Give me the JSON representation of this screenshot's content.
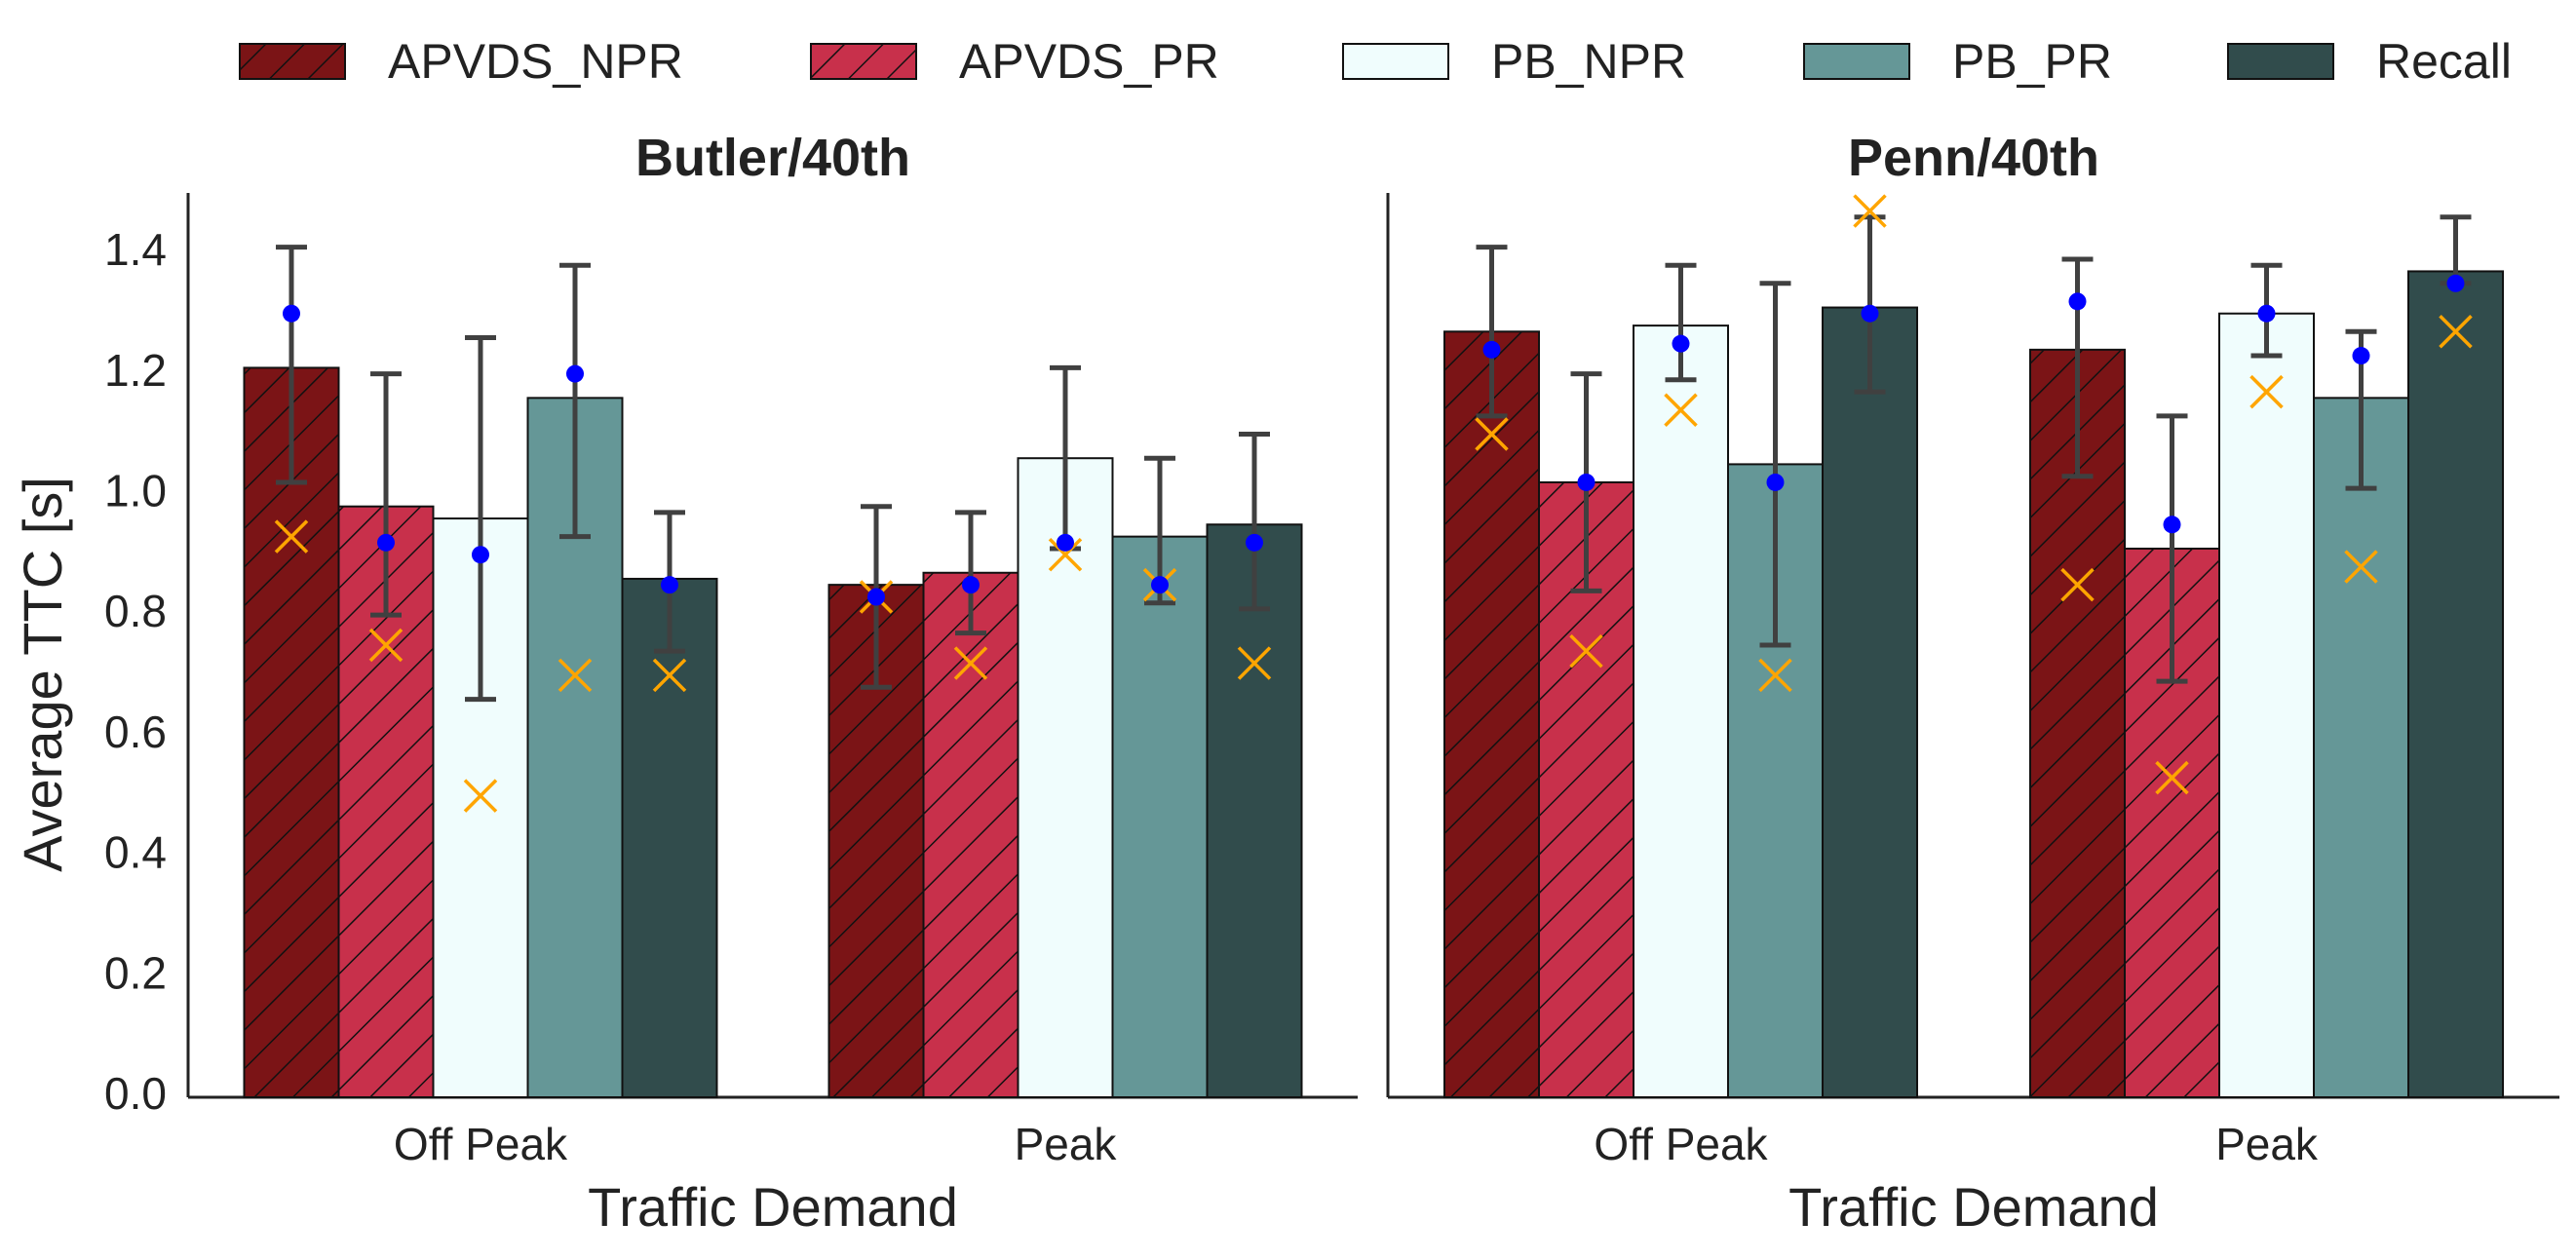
{
  "chart_data": {
    "type": "bar",
    "y_label": "Average TTC [s]",
    "x_label": "Traffic Demand",
    "ylim": [
      0,
      1.5
    ],
    "y_ticks": [
      "0.0",
      "0.2",
      "0.4",
      "0.6",
      "0.8",
      "1.0",
      "1.2",
      "1.4"
    ],
    "categories": [
      "Off Peak",
      "Peak"
    ],
    "legend_position": "top, above panels",
    "grid": false,
    "series": [
      {
        "name": "APVDS_NPR",
        "color": "#7b1416",
        "hatch": true
      },
      {
        "name": "APVDS_PR",
        "color": "#c8304b",
        "hatch": true
      },
      {
        "name": "PB_NPR",
        "color": "#f0fdfd",
        "hatch": false
      },
      {
        "name": "PB_PR",
        "color": "#659797",
        "hatch": false
      },
      {
        "name": "Recall",
        "color": "#314c4c",
        "hatch": false
      }
    ],
    "marker_colors": {
      "dot": "#0000ff",
      "cross": "#ffa500",
      "errorbar": "#404040"
    },
    "panels": [
      {
        "title": "Butler/40th",
        "groups": [
          {
            "category": "Off Peak",
            "bars": [
              {
                "series": "APVDS_NPR",
                "mean": 1.21,
                "err_low": 1.02,
                "err_high": 1.41,
                "dot": 1.3,
                "cross": 0.93
              },
              {
                "series": "APVDS_PR",
                "mean": 0.98,
                "err_low": 0.8,
                "err_high": 1.2,
                "dot": 0.92,
                "cross": 0.75
              },
              {
                "series": "PB_NPR",
                "mean": 0.96,
                "err_low": 0.66,
                "err_high": 1.26,
                "dot": 0.9,
                "cross": 0.5
              },
              {
                "series": "PB_PR",
                "mean": 1.16,
                "err_low": 0.93,
                "err_high": 1.38,
                "dot": 1.2,
                "cross": 0.7
              },
              {
                "series": "Recall",
                "mean": 0.86,
                "err_low": 0.74,
                "err_high": 0.97,
                "dot": 0.85,
                "cross": 0.7
              }
            ]
          },
          {
            "category": "Peak",
            "bars": [
              {
                "series": "APVDS_NPR",
                "mean": 0.85,
                "err_low": 0.68,
                "err_high": 0.98,
                "dot": 0.83,
                "cross": 0.83
              },
              {
                "series": "APVDS_PR",
                "mean": 0.87,
                "err_low": 0.77,
                "err_high": 0.97,
                "dot": 0.85,
                "cross": 0.72
              },
              {
                "series": "PB_NPR",
                "mean": 1.06,
                "err_low": 0.91,
                "err_high": 1.21,
                "dot": 0.92,
                "cross": 0.9
              },
              {
                "series": "PB_PR",
                "mean": 0.93,
                "err_low": 0.82,
                "err_high": 1.06,
                "dot": 0.85,
                "cross": 0.85
              },
              {
                "series": "Recall",
                "mean": 0.95,
                "err_low": 0.81,
                "err_high": 1.1,
                "dot": 0.92,
                "cross": 0.72
              }
            ]
          }
        ]
      },
      {
        "title": "Penn/40th",
        "groups": [
          {
            "category": "Off Peak",
            "bars": [
              {
                "series": "APVDS_NPR",
                "mean": 1.27,
                "err_low": 1.13,
                "err_high": 1.41,
                "dot": 1.24,
                "cross": 1.1
              },
              {
                "series": "APVDS_PR",
                "mean": 1.02,
                "err_low": 0.84,
                "err_high": 1.2,
                "dot": 1.02,
                "cross": 0.74
              },
              {
                "series": "PB_NPR",
                "mean": 1.28,
                "err_low": 1.19,
                "err_high": 1.38,
                "dot": 1.25,
                "cross": 1.14
              },
              {
                "series": "PB_PR",
                "mean": 1.05,
                "err_low": 0.75,
                "err_high": 1.35,
                "dot": 1.02,
                "cross": 0.7
              },
              {
                "series": "Recall",
                "mean": 1.31,
                "err_low": 1.17,
                "err_high": 1.46,
                "dot": 1.3,
                "cross": 1.47
              }
            ]
          },
          {
            "category": "Peak",
            "bars": [
              {
                "series": "APVDS_NPR",
                "mean": 1.24,
                "err_low": 1.03,
                "err_high": 1.39,
                "dot": 1.32,
                "cross": 0.85
              },
              {
                "series": "APVDS_PR",
                "mean": 0.91,
                "err_low": 0.69,
                "err_high": 1.13,
                "dot": 0.95,
                "cross": 0.53
              },
              {
                "series": "PB_NPR",
                "mean": 1.3,
                "err_low": 1.23,
                "err_high": 1.38,
                "dot": 1.3,
                "cross": 1.17
              },
              {
                "series": "PB_PR",
                "mean": 1.16,
                "err_low": 1.01,
                "err_high": 1.27,
                "dot": 1.23,
                "cross": 0.88
              },
              {
                "series": "Recall",
                "mean": 1.37,
                "err_low": 1.35,
                "err_high": 1.46,
                "dot": 1.35,
                "cross": 1.27
              }
            ]
          }
        ]
      }
    ]
  }
}
